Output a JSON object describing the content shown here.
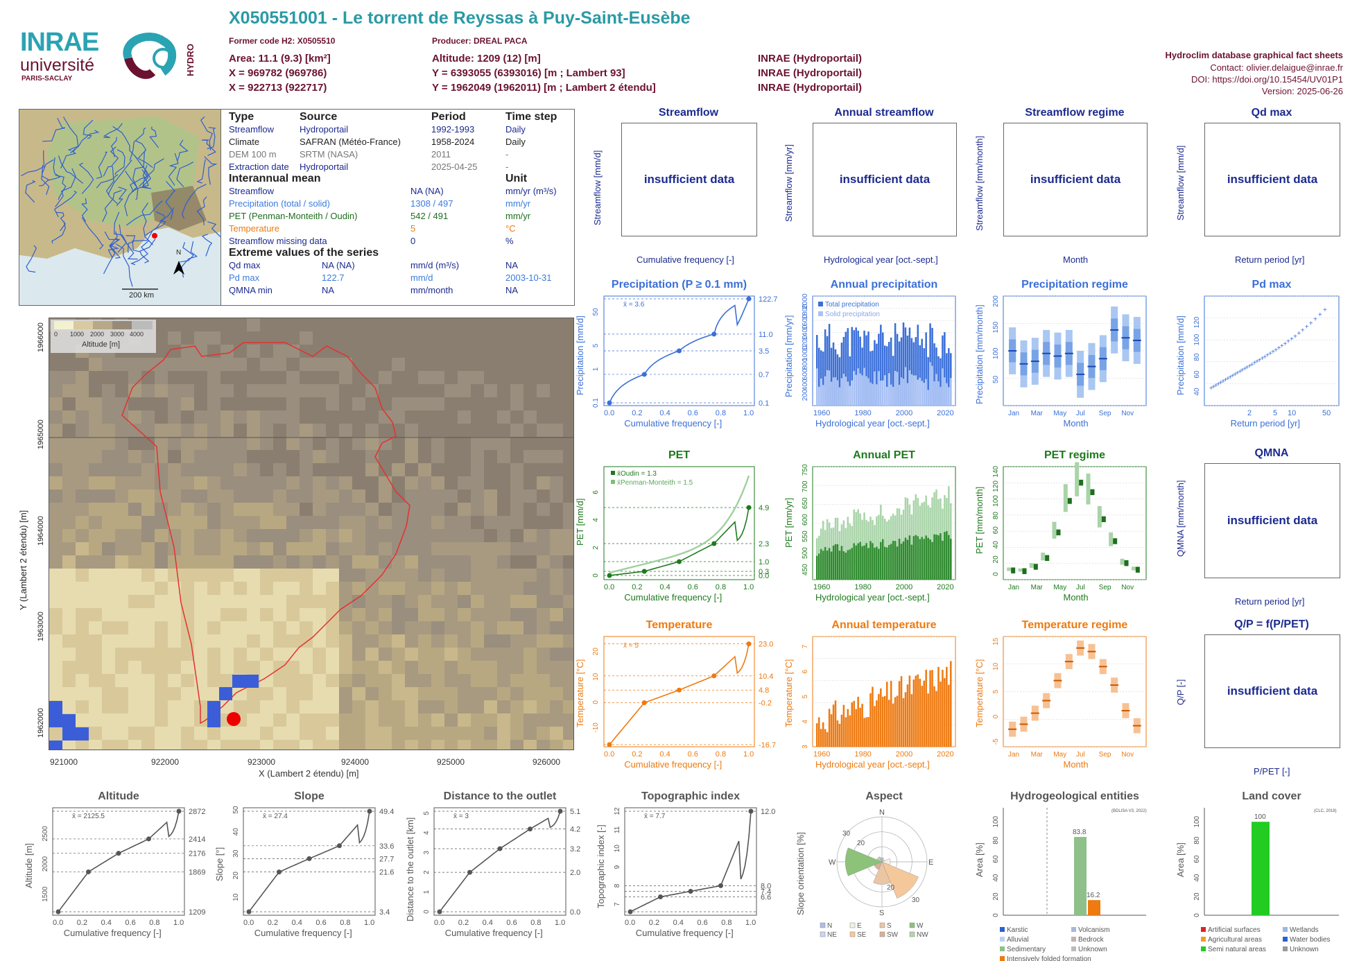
{
  "header": {
    "title": "X050551001 - Le torrent de Reyssas à Puy-Saint-Eusèbe",
    "former_code": "Former code H2: X0505510",
    "producer": "Producer: DREAL PACA",
    "area": "Area: 11.1 (9.3) [km²]",
    "altitude": "Altitude: 1209 (12) [m]",
    "x93": "X = 969782 (969786)",
    "y93": "Y = 6393055 (6393016) [m ; Lambert 93]",
    "x2e": "X = 922713 (922717)",
    "y2e": "Y = 1962049 (1962011) [m ; Lambert 2 étendu]",
    "src1": "INRAE (Hydroportail)",
    "src2": "INRAE (Hydroportail)",
    "src3": "INRAE (Hydroportail)",
    "right_title": "Hydroclim database graphical fact sheets",
    "contact": "Contact: olivier.delaigue@inrae.fr",
    "doi": "DOI: https://doi.org/10.15454/UV01P1",
    "version": "Version: 2025-06-26"
  },
  "logos": {
    "inrae": "INRAE",
    "universite": "université",
    "paris_saclay": "PARIS-SACLAY",
    "hydro": "HYDRO"
  },
  "overview": {
    "scale": "200 km",
    "north": "N"
  },
  "info": {
    "h_type": "Type",
    "h_source": "Source",
    "h_period": "Period",
    "h_timestep": "Time step",
    "rows": [
      {
        "type": "Streamflow",
        "source": "Hydroportail",
        "period": "1992-1993",
        "step": "Daily"
      },
      {
        "type": "Climate",
        "source": "SAFRAN (Météo-France)",
        "period": "1958-2024",
        "step": "Daily"
      },
      {
        "type": "DEM 100 m",
        "source": "SRTM (NASA)",
        "period": "2011",
        "step": "-"
      },
      {
        "type": "Extraction date",
        "source": "Hydroportail",
        "period": "2025-04-25",
        "step": "-"
      }
    ],
    "h_mean": "Interannual mean",
    "h_unit": "Unit",
    "mean_rows": [
      {
        "label": "Streamflow",
        "value": "NA (NA)",
        "unit": "mm/yr (m³/s)"
      },
      {
        "label": "Precipitation (total / solid)",
        "value": "1308 / 497",
        "unit": "mm/yr"
      },
      {
        "label": "PET (Penman-Monteith / Oudin)",
        "value": "542 / 491",
        "unit": "mm/yr"
      },
      {
        "label": "Temperature",
        "value": "5",
        "unit": "°C"
      },
      {
        "label": "Streamflow missing data",
        "value": "0",
        "unit": "%"
      }
    ],
    "h_extreme": "Extreme values of the series",
    "ext_rows": [
      {
        "label": "Qd max",
        "value": "NA (NA)",
        "unit": "mm/d (m³/s)",
        "date": "NA"
      },
      {
        "label": "Pd max",
        "value": "122.7",
        "unit": "mm/d",
        "date": "2003-10-31"
      },
      {
        "label": "QMNA min",
        "value": "NA",
        "unit": "mm/month",
        "date": "NA"
      }
    ]
  },
  "map": {
    "legend_ticks": [
      "0",
      "1000",
      "2000",
      "3000",
      "4000"
    ],
    "legend_label": "Altitude [m]",
    "xticks": [
      "921000",
      "922000",
      "923000",
      "924000",
      "925000",
      "926000"
    ],
    "yticks": [
      "1966000",
      "1965000",
      "1964000",
      "1963000",
      "1962000"
    ],
    "xlabel": "X (Lambert 2 étendu) [m]",
    "ylabel": "Y (Lambert 2 étendu) [m]"
  },
  "panels": {
    "insufficient": "insufficient data",
    "streamflow": {
      "title": "Streamflow",
      "ylabel": "Streamflow [mm/d]",
      "xlabel": "Cumulative frequency [-]"
    },
    "annual_streamflow": {
      "title": "Annual streamflow",
      "ylabel": "Streamflow [mm/yr]",
      "xlabel": "Hydrological year [oct.-sept.]"
    },
    "streamflow_regime": {
      "title": "Streamflow regime",
      "ylabel": "Streamflow [mm/month]",
      "xlabel": "Month"
    },
    "qd_max": {
      "title": "Qd max",
      "ylabel": "Streamflow [mm/d]",
      "xlabel": "Return period [yr]"
    },
    "qmna": {
      "title": "QMNA",
      "ylabel": "QMNA [mm/month]",
      "xlabel": "Return period [yr]"
    },
    "qp": {
      "title": "Q/P = f(P/PET)",
      "ylabel": "Q/P [-]",
      "xlabel": "P/PET [-]"
    },
    "precip": {
      "title": "Precipitation (P ≥ 0.1 mm)",
      "ylabel": "Precipitation [mm/d]",
      "xlabel": "Cumulative frequency [-]",
      "mean": "x̄ = 3.6"
    },
    "annual_precip": {
      "title": "Annual precipitation",
      "ylabel": "Precipitation [mm/yr]",
      "xlabel": "Hydrological year [oct.-sept.]",
      "leg1": "Total precipitation",
      "leg2": "Solid precipitation"
    },
    "precip_regime": {
      "title": "Precipitation regime",
      "ylabel": "Precipitation [mm/month]",
      "xlabel": "Month"
    },
    "pd_max": {
      "title": "Pd max",
      "ylabel": "Precipitation [mm/d]",
      "xlabel": "Return period [yr]"
    },
    "pet": {
      "title": "PET",
      "ylabel": "PET [mm/d]",
      "xlabel": "Cumulative frequency [-]",
      "leg1": "x̄Oudin = 1.3",
      "leg2": "x̄Penman-Monteith = 1.5"
    },
    "annual_pet": {
      "title": "Annual PET",
      "ylabel": "PET [mm/yr]",
      "xlabel": "Hydrological year [oct.-sept.]"
    },
    "pet_regime": {
      "title": "PET regime",
      "ylabel": "PET [mm/month]",
      "xlabel": "Month"
    },
    "temp": {
      "title": "Temperature",
      "ylabel": "Temperature [°C]",
      "xlabel": "Cumulative frequency [-]",
      "mean": "x̄ = 5"
    },
    "annual_temp": {
      "title": "Annual temperature",
      "ylabel": "Temperature [°C]",
      "xlabel": "Hydrological year [oct.-sept.]"
    },
    "temp_regime": {
      "title": "Temperature regime",
      "ylabel": "Temperature [°C]",
      "xlabel": "Month"
    },
    "altitude": {
      "title": "Altitude",
      "ylabel": "Altitude [m]",
      "xlabel": "Cumulative frequency [-]",
      "mean": "x̄ = 2125.5"
    },
    "slope": {
      "title": "Slope",
      "ylabel": "Slope [°]",
      "xlabel": "Cumulative frequency [-]",
      "mean": "x̄ = 27.4"
    },
    "distance": {
      "title": "Distance to the outlet",
      "ylabel": "Distance to the outlet [km]",
      "xlabel": "Cumulative frequency [-]",
      "mean": "x̄ = 3"
    },
    "topo": {
      "title": "Topographic index",
      "ylabel": "Topographic index [-]",
      "xlabel": "Cumulative frequency [-]",
      "mean": "x̄ = 7.7"
    },
    "aspect": {
      "title": "Aspect",
      "ylabel": "Slope orientation [%]",
      "legend": [
        "N",
        "E",
        "S",
        "W",
        "NE",
        "SE",
        "SW",
        "NW"
      ]
    },
    "hydrogeo": {
      "title": "Hydrogeological entities",
      "ylabel": "Area [%]",
      "note": "(BDLISA V3, 2022)",
      "legend": [
        "Karstic",
        "Volcanism",
        "Alluvial",
        "Bedrock",
        "Sedimentary",
        "Unknown",
        "Intensively folded formation"
      ]
    },
    "landcover": {
      "title": "Land cover",
      "ylabel": "Area [%]",
      "note": "(CLC, 2018)",
      "legend": [
        "Artificial surfaces",
        "Wetlands",
        "Agricultural areas",
        "Water bodies",
        "Semi natural areas",
        "Unknown"
      ]
    }
  },
  "chart_data": [
    {
      "type": "line",
      "title": "Precipitation (P ≥ 0.1 mm)",
      "xlabel": "Cumulative frequency [-]",
      "ylabel": "Precipitation [mm/d]",
      "x": [
        0,
        0.25,
        0.5,
        0.75,
        1.0
      ],
      "y": [
        0.1,
        0.7,
        3.5,
        11.0,
        122.7
      ],
      "right_ticks": [
        "122.7",
        "11.0",
        "3.5",
        "0.7",
        "0.1"
      ],
      "yticks": [
        "0.1",
        "1",
        "5",
        "50"
      ],
      "xticks": [
        "0.0",
        "0.2",
        "0.4",
        "0.6",
        "0.8",
        "1.0"
      ]
    },
    {
      "type": "bar",
      "title": "Annual precipitation",
      "xlabel": "Hydrological year [oct.-sept.]",
      "ylabel": "Precipitation [mm/yr]",
      "xticks": [
        "1960",
        "1980",
        "2000",
        "2020"
      ],
      "yticks": [
        "200",
        "400",
        "600",
        "800",
        "1000",
        "1200",
        "1400",
        "1600",
        "1800",
        "2000"
      ],
      "series": [
        {
          "name": "Total precipitation"
        },
        {
          "name": "Solid precipitation"
        }
      ]
    },
    {
      "type": "box",
      "title": "Precipitation regime",
      "xlabel": "Month",
      "ylabel": "Precipitation [mm/month]",
      "categories": [
        "Jan",
        "Feb",
        "Mar",
        "Apr",
        "May",
        "Jun",
        "Jul",
        "Aug",
        "Sep",
        "Oct",
        "Nov",
        "Dec"
      ],
      "median": [
        105,
        80,
        85,
        100,
        95,
        100,
        60,
        75,
        90,
        145,
        130,
        125
      ],
      "yticks": [
        "50",
        "100",
        "150",
        "200"
      ]
    },
    {
      "type": "scatter",
      "title": "Pd max",
      "xlabel": "Return period [yr]",
      "ylabel": "Precipitation [mm/d]",
      "xticks": [
        "2",
        "5",
        "10",
        "50"
      ],
      "yticks": [
        "40",
        "60",
        "80",
        "100",
        "120"
      ]
    },
    {
      "type": "line",
      "title": "PET",
      "xlabel": "Cumulative frequency [-]",
      "ylabel": "PET [mm/d]",
      "x": [
        0,
        0.25,
        0.5,
        0.75,
        1.0
      ],
      "y": [
        0.0,
        0.3,
        1.0,
        2.3,
        4.9
      ],
      "right_ticks": [
        "4.9",
        "2.3",
        "1.0",
        "0.3",
        "0.0"
      ],
      "yticks": [
        "0",
        "2",
        "4",
        "6"
      ]
    },
    {
      "type": "bar",
      "title": "Annual PET",
      "xlabel": "Hydrological year [oct.-sept.]",
      "ylabel": "PET [mm/yr]",
      "xticks": [
        "1960",
        "1980",
        "2000",
        "2020"
      ],
      "yticks": [
        "450",
        "500",
        "550",
        "600",
        "650",
        "700",
        "750"
      ]
    },
    {
      "type": "box",
      "title": "PET regime",
      "xlabel": "Month",
      "ylabel": "PET [mm/month]",
      "categories": [
        "Jan",
        "Feb",
        "Mar",
        "Apr",
        "May",
        "Jun",
        "Jul",
        "Aug",
        "Sep",
        "Oct",
        "Nov",
        "Dec"
      ],
      "median": [
        5,
        4,
        10,
        22,
        57,
        100,
        125,
        112,
        75,
        45,
        15,
        6
      ],
      "yticks": [
        "0",
        "20",
        "40",
        "60",
        "80",
        "100",
        "120",
        "140"
      ]
    },
    {
      "type": "line",
      "title": "Temperature",
      "xlabel": "Cumulative frequency [-]",
      "ylabel": "Temperature [°C]",
      "x": [
        0,
        0.25,
        0.5,
        0.75,
        1.0
      ],
      "y": [
        -16.7,
        -0.2,
        4.8,
        10.4,
        23.0
      ],
      "right_ticks": [
        "23.0",
        "10.4",
        "4.8",
        "-0.2",
        "-16.7"
      ],
      "yticks": [
        "-10",
        "0",
        "10",
        "20"
      ]
    },
    {
      "type": "bar",
      "title": "Annual temperature",
      "xlabel": "Hydrological year [oct.-sept.]",
      "ylabel": "Temperature [°C]",
      "xticks": [
        "1960",
        "1980",
        "2000",
        "2020"
      ],
      "yticks": [
        "3",
        "4",
        "5",
        "6",
        "7"
      ]
    },
    {
      "type": "box",
      "title": "Temperature regime",
      "xlabel": "Month",
      "ylabel": "Temperature [°C]",
      "categories": [
        "Jan",
        "Feb",
        "Mar",
        "Apr",
        "May",
        "Jun",
        "Jul",
        "Aug",
        "Sep",
        "Oct",
        "Nov",
        "Dec"
      ],
      "median": [
        -2.5,
        -1.5,
        0.7,
        3.2,
        7.2,
        11,
        13.7,
        13,
        10,
        6.3,
        1.2,
        -1.8
      ],
      "yticks": [
        "-5",
        "0",
        "5",
        "10",
        "15"
      ]
    },
    {
      "type": "line",
      "title": "Altitude",
      "xlabel": "Cumulative frequency [-]",
      "ylabel": "Altitude [m]",
      "x": [
        0,
        0.25,
        0.5,
        0.75,
        1.0
      ],
      "y": [
        1209,
        1869,
        2176,
        2414,
        2872
      ],
      "right_ticks": [
        "2872",
        "2414",
        "2176",
        "1869",
        "1209"
      ],
      "yticks": [
        "1500",
        "2000",
        "2500"
      ]
    },
    {
      "type": "line",
      "title": "Slope",
      "xlabel": "Cumulative frequency [-]",
      "ylabel": "Slope [°]",
      "x": [
        0,
        0.25,
        0.5,
        0.75,
        1.0
      ],
      "y": [
        3.4,
        21.6,
        27.7,
        33.6,
        49.4
      ],
      "right_ticks": [
        "49.4",
        "33.6",
        "27.7",
        "21.6",
        "3.4"
      ],
      "yticks": [
        "10",
        "20",
        "30",
        "40",
        "50"
      ]
    },
    {
      "type": "line",
      "title": "Distance to the outlet",
      "xlabel": "Cumulative frequency [-]",
      "ylabel": "Distance to the outlet [km]",
      "x": [
        0,
        0.25,
        0.5,
        0.75,
        1.0
      ],
      "y": [
        0.0,
        2.0,
        3.2,
        4.2,
        5.1
      ],
      "right_ticks": [
        "5.1",
        "4.2",
        "3.2",
        "2.0",
        "0.0"
      ],
      "yticks": [
        "0",
        "1",
        "2",
        "3",
        "4",
        "5"
      ]
    },
    {
      "type": "line",
      "title": "Topographic index",
      "xlabel": "Cumulative frequency [-]",
      "ylabel": "Topographic index [-]",
      "x": [
        0,
        0.25,
        0.5,
        0.75,
        1.0
      ],
      "y": [
        6.6,
        7.4,
        7.7,
        8.0,
        12.0
      ],
      "right_ticks": [
        "12.0",
        "8.0",
        "7.4",
        "6.6"
      ],
      "yticks": [
        "7",
        "8",
        "9",
        "10",
        "11",
        "12"
      ]
    },
    {
      "type": "pie",
      "title": "Aspect",
      "categories": [
        "N",
        "NE",
        "E",
        "SE",
        "S",
        "SW",
        "W",
        "NW"
      ],
      "values": [
        3,
        2,
        6,
        28,
        16,
        6,
        26,
        4
      ],
      "rings": [
        "10",
        "20",
        "30"
      ]
    },
    {
      "type": "bar",
      "title": "Hydrogeological entities",
      "ylabel": "Area [%]",
      "categories": [
        "Sedimentary",
        "Intensively folded formation"
      ],
      "values": [
        83.8,
        16.2
      ],
      "yticks": [
        "0",
        "20",
        "40",
        "60",
        "80",
        "100"
      ]
    },
    {
      "type": "bar",
      "title": "Land cover",
      "ylabel": "Area [%]",
      "categories": [
        "Semi natural areas"
      ],
      "values": [
        100
      ],
      "yticks": [
        "0",
        "20",
        "40",
        "60",
        "80",
        "100"
      ]
    }
  ]
}
